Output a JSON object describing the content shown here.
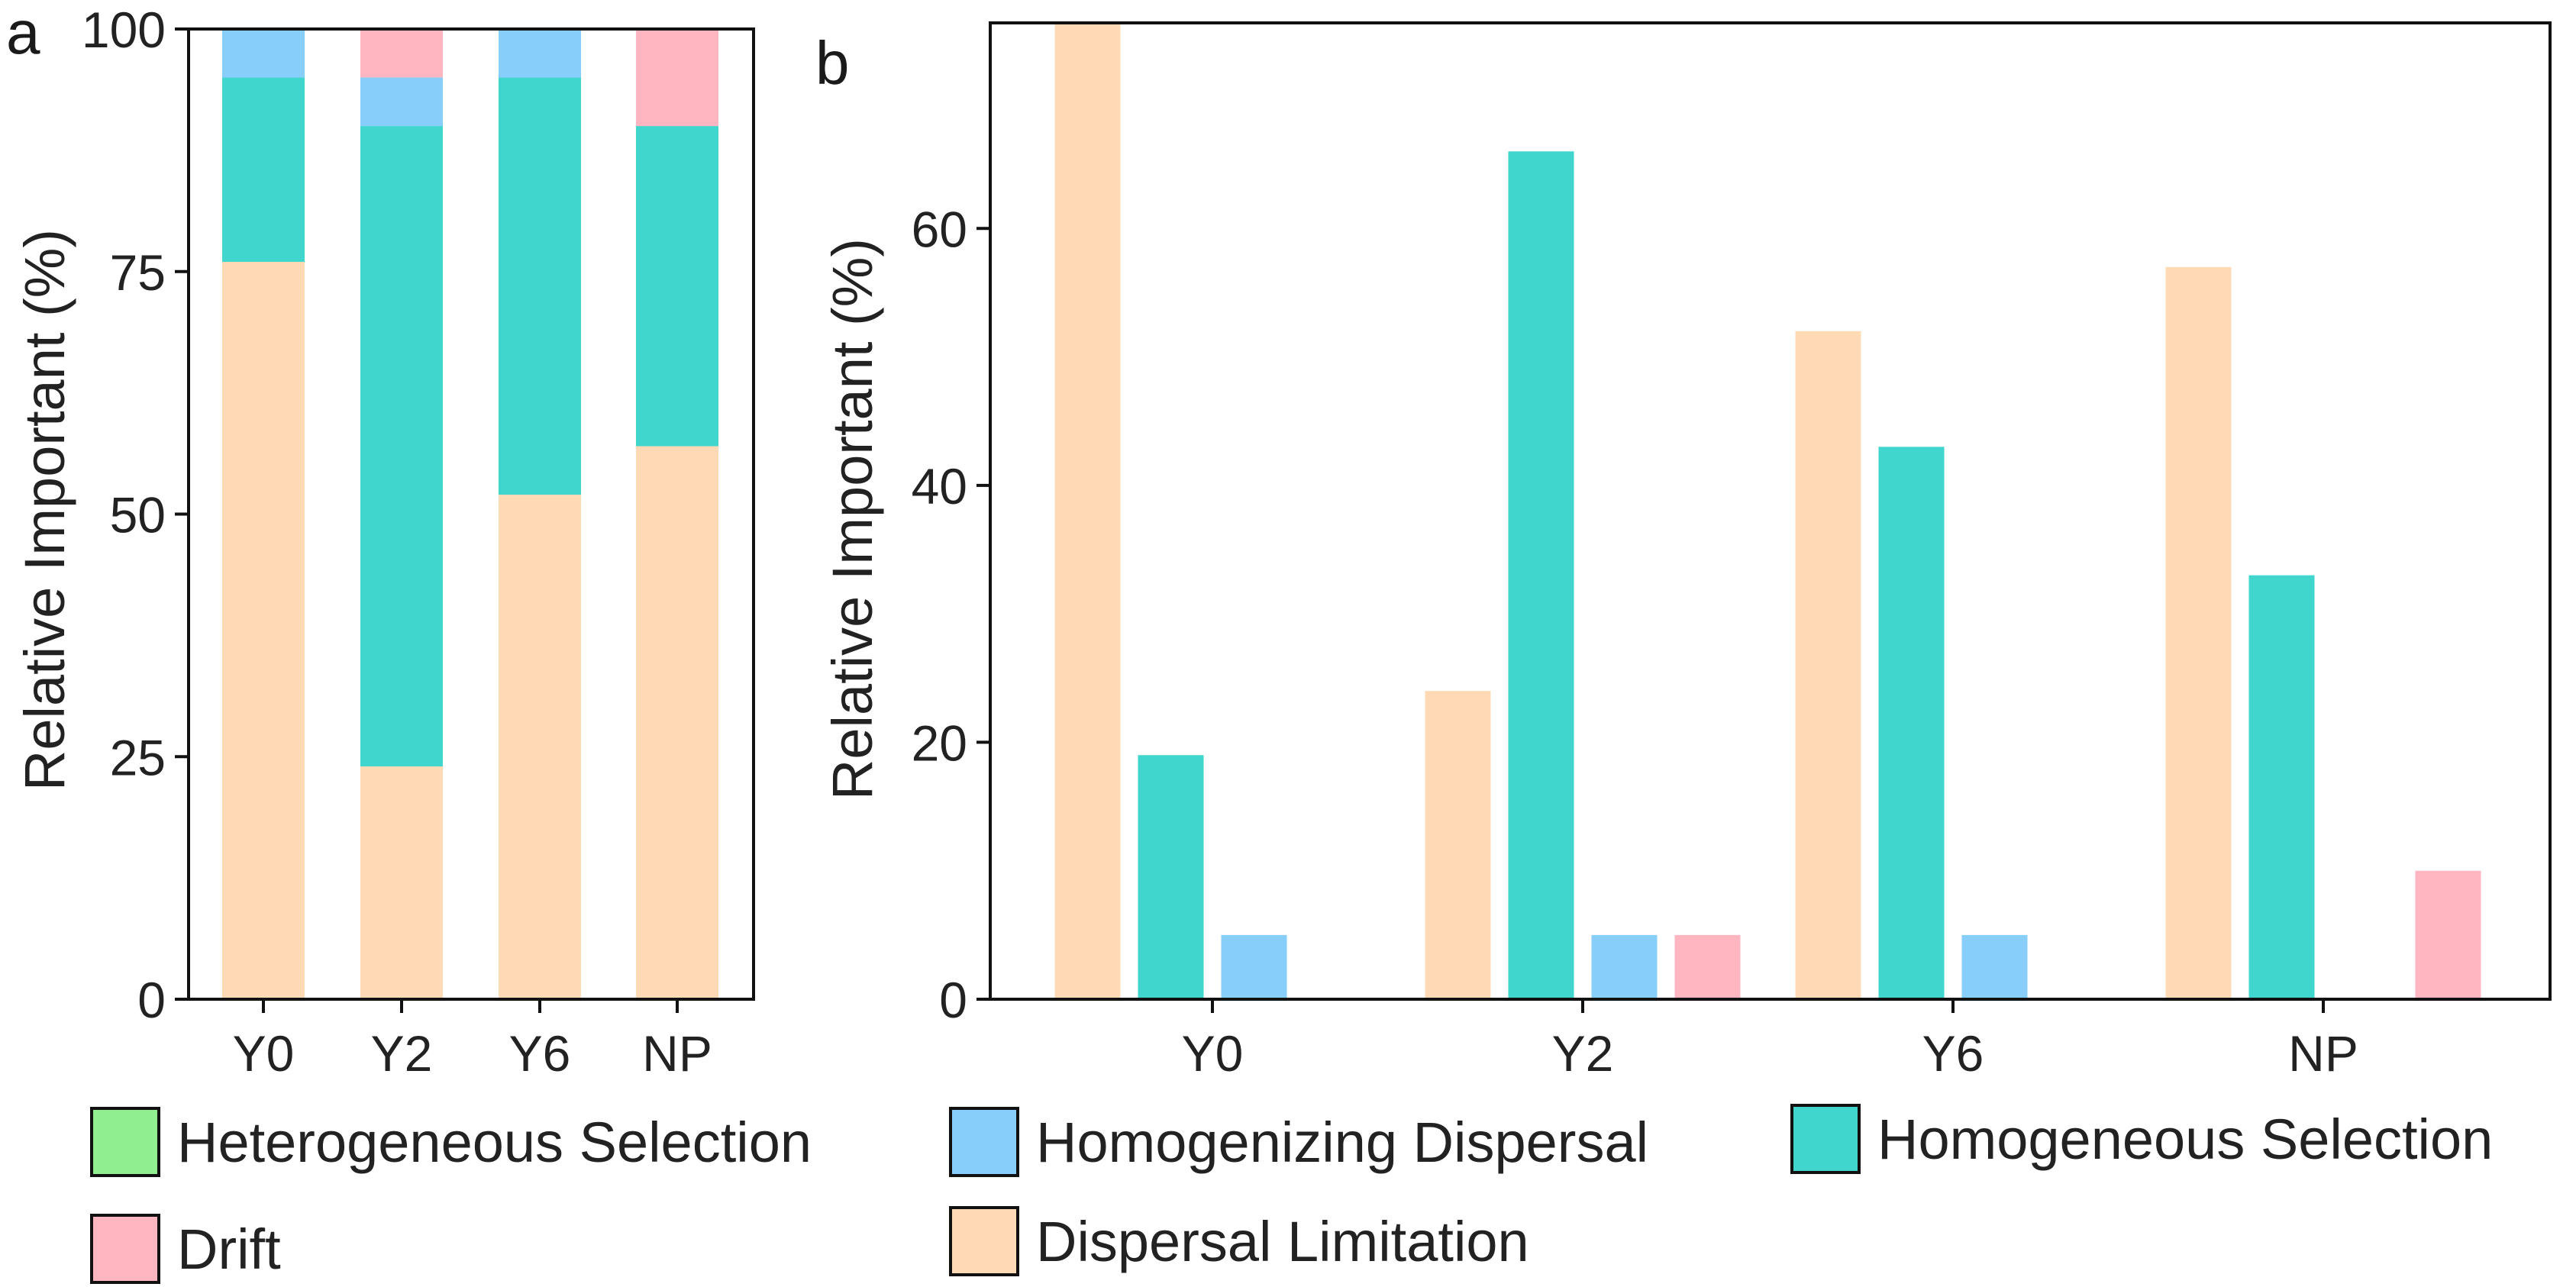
{
  "chart_data": [
    {
      "panel": "a",
      "type": "bar",
      "stacked": true,
      "categories": [
        "Y0",
        "Y2",
        "Y6",
        "NP"
      ],
      "series": [
        {
          "name": "Dispersal Limitation",
          "values": [
            76,
            24,
            52,
            57
          ]
        },
        {
          "name": "Homogeneous Selection",
          "values": [
            19,
            66,
            43,
            33
          ]
        },
        {
          "name": "Homogenizing Dispersal",
          "values": [
            5,
            5,
            5,
            0
          ]
        },
        {
          "name": "Drift",
          "values": [
            0,
            5,
            0,
            10
          ]
        }
      ],
      "ylabel": "Relative Important (%)",
      "ylim": [
        0,
        100
      ],
      "yticks": [
        0,
        25,
        50,
        75,
        100
      ]
    },
    {
      "panel": "b",
      "type": "bar",
      "stacked": false,
      "categories": [
        "Y0",
        "Y2",
        "Y6",
        "NP"
      ],
      "series": [
        {
          "name": "Dispersal Limitation",
          "values": [
            76,
            24,
            52,
            57
          ]
        },
        {
          "name": "Homogeneous Selection",
          "values": [
            19,
            66,
            43,
            33
          ]
        },
        {
          "name": "Homogenizing Dispersal",
          "values": [
            5,
            5,
            5,
            0
          ]
        },
        {
          "name": "Drift",
          "values": [
            0,
            5,
            0,
            10
          ]
        }
      ],
      "ylabel": "Relative Important (%)",
      "ylim": [
        0,
        76
      ],
      "yticks": [
        0,
        20,
        40,
        60
      ]
    }
  ],
  "colors": {
    "Heterogeneous Selection": "#90EE90",
    "Homogenizing Dispersal": "#87CEFA",
    "Homogeneous Selection": "#40D5CD",
    "Drift": "#FFB6C1",
    "Dispersal Limitation": "#FFDAB5"
  },
  "legend": [
    {
      "label": "Heterogeneous Selection",
      "color": "#90EE90"
    },
    {
      "label": "Homogenizing Dispersal",
      "color": "#87CEFA"
    },
    {
      "label": "Homogeneous Selection",
      "color": "#40D5CD"
    },
    {
      "label": "Drift",
      "color": "#FFB6C1"
    },
    {
      "label": "Dispersal Limitation",
      "color": "#FFDAB5"
    }
  ]
}
